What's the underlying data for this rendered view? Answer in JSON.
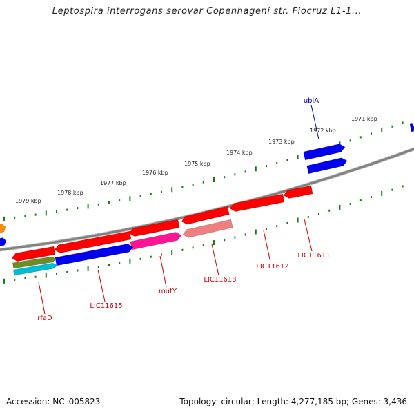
{
  "title": "Leptospira interrogans serovar Copenhageni str. Fiocruz L1-1...",
  "footer": {
    "accession": "Accession: NC_005823",
    "summary": "Topology: circular; Length: 4,277,185 bp; Genes: 3,436"
  },
  "colors": {
    "backbone": "#808080",
    "ticks": "#1a7a1a",
    "gene_red": "#ff0000",
    "gene_blue": "#0000ee",
    "gene_magenta": "#ff1493",
    "gene_salmon": "#f08080",
    "gene_olive": "#6b8e23",
    "gene_cyan": "#00bcd4",
    "gene_orange": "#ff8c00",
    "label_red": "#cc0000",
    "label_blue": "#0000aa"
  },
  "tick_labels": [
    "1979 kbp",
    "1978 kbp",
    "1977 kbp",
    "1976 kbp",
    "1975 kbp",
    "1974 kbp",
    "1973 kbp",
    "1972 kbp",
    "1971 kbp"
  ],
  "gene_labels": [
    {
      "name": "ubiA",
      "color": "#0000aa"
    },
    {
      "name": "LIC11611",
      "color": "#cc0000"
    },
    {
      "name": "LIC11612",
      "color": "#cc0000"
    },
    {
      "name": "LIC11613",
      "color": "#cc0000"
    },
    {
      "name": "mutY",
      "color": "#cc0000"
    },
    {
      "name": "LIC11615",
      "color": "#cc0000"
    },
    {
      "name": "rfaD",
      "color": "#cc0000"
    }
  ]
}
